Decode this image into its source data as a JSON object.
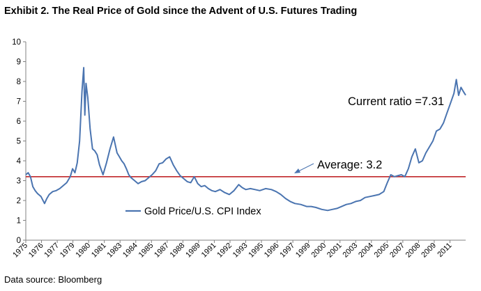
{
  "title": "Exhibit 2. The Real Price of Gold since the Advent of U.S. Futures Trading",
  "source": "Data source: Bloomberg",
  "chart_data": {
    "type": "line",
    "title": "Exhibit 2. The Real Price of Gold since the Advent of U.S. Futures Trading",
    "xlabel": "",
    "ylabel": "",
    "ylim": [
      0,
      10
    ],
    "yticks": [
      0,
      1,
      2,
      3,
      4,
      5,
      6,
      7,
      8,
      9,
      10
    ],
    "xticks": [
      "1975",
      "1976",
      "1977",
      "1979",
      "1980",
      "1981",
      "1983",
      "1984",
      "1985",
      "1987",
      "1988",
      "1989",
      "1991",
      "1992",
      "1993",
      "1995",
      "1996",
      "1997",
      "1999",
      "2000",
      "2001",
      "2003",
      "2004",
      "2005",
      "2007",
      "2008",
      "2009",
      "2011"
    ],
    "grid": false,
    "legend": {
      "position": "lower-left",
      "entries": [
        "Gold Price/U.S. CPI Index"
      ]
    },
    "colors": {
      "series": "#4a74b0",
      "average": "#c0282a"
    },
    "series": [
      {
        "name": "Gold Price/U.S. CPI Index",
        "x": [
          1975.0,
          1975.2,
          1975.4,
          1975.6,
          1975.8,
          1976.0,
          1976.3,
          1976.6,
          1976.8,
          1977.0,
          1977.3,
          1977.6,
          1977.9,
          1978.2,
          1978.5,
          1978.8,
          1979.0,
          1979.2,
          1979.4,
          1979.6,
          1979.8,
          1979.95,
          1980.05,
          1980.15,
          1980.3,
          1980.5,
          1980.7,
          1980.9,
          1981.1,
          1981.3,
          1981.6,
          1981.9,
          1982.2,
          1982.5,
          1982.8,
          1983.0,
          1983.2,
          1983.4,
          1983.6,
          1983.8,
          1984.0,
          1984.3,
          1984.6,
          1984.9,
          1985.2,
          1985.5,
          1985.8,
          1986.1,
          1986.4,
          1986.7,
          1987.0,
          1987.3,
          1987.6,
          1987.9,
          1988.2,
          1988.5,
          1988.8,
          1989.1,
          1989.4,
          1989.7,
          1990.0,
          1990.3,
          1990.6,
          1990.9,
          1991.2,
          1991.6,
          1992.0,
          1992.4,
          1992.8,
          1993.2,
          1993.5,
          1993.8,
          1994.2,
          1994.6,
          1995.0,
          1995.5,
          1996.0,
          1996.4,
          1996.8,
          1997.2,
          1997.6,
          1998.0,
          1998.5,
          1999.0,
          1999.4,
          1999.8,
          2000.3,
          2000.8,
          2001.2,
          2001.6,
          2002.0,
          2002.4,
          2002.8,
          2003.2,
          2003.6,
          2004.0,
          2004.4,
          2004.8,
          2005.2,
          2005.6,
          2005.9,
          2006.2,
          2006.5,
          2006.8,
          2007.1,
          2007.4,
          2007.7,
          2008.0,
          2008.3,
          2008.6,
          2008.9,
          2009.2,
          2009.5,
          2009.8,
          2010.1,
          2010.4,
          2010.7,
          2011.0,
          2011.3,
          2011.6,
          2011.8,
          2012.0,
          2012.2,
          2012.4,
          2012.6
        ],
        "y": [
          3.3,
          3.4,
          3.2,
          2.7,
          2.5,
          2.35,
          2.2,
          1.85,
          2.1,
          2.3,
          2.45,
          2.5,
          2.6,
          2.75,
          2.9,
          3.2,
          3.6,
          3.4,
          3.9,
          5.0,
          7.5,
          8.7,
          6.3,
          7.9,
          7.2,
          5.6,
          4.6,
          4.5,
          4.3,
          3.8,
          3.3,
          3.9,
          4.6,
          5.2,
          4.4,
          4.2,
          4.0,
          3.85,
          3.6,
          3.3,
          3.15,
          3.0,
          2.85,
          2.95,
          3.0,
          3.15,
          3.3,
          3.5,
          3.85,
          3.9,
          4.1,
          4.2,
          3.8,
          3.5,
          3.25,
          3.1,
          2.95,
          2.9,
          3.2,
          2.85,
          2.7,
          2.75,
          2.6,
          2.5,
          2.45,
          2.55,
          2.4,
          2.3,
          2.5,
          2.8,
          2.65,
          2.55,
          2.6,
          2.55,
          2.5,
          2.6,
          2.55,
          2.45,
          2.3,
          2.1,
          1.95,
          1.85,
          1.8,
          1.7,
          1.7,
          1.65,
          1.55,
          1.5,
          1.55,
          1.6,
          1.7,
          1.8,
          1.85,
          1.95,
          2.0,
          2.15,
          2.2,
          2.25,
          2.3,
          2.45,
          2.9,
          3.3,
          3.2,
          3.25,
          3.3,
          3.2,
          3.6,
          4.2,
          4.6,
          3.9,
          4.0,
          4.4,
          4.7,
          5.0,
          5.5,
          5.6,
          5.9,
          6.4,
          6.9,
          7.4,
          8.1,
          7.3,
          7.7,
          7.5,
          7.31
        ]
      }
    ],
    "average": {
      "label": "Average: 3.2",
      "value": 3.2
    },
    "annotations": [
      {
        "text": "Current ratio =7.31"
      },
      {
        "text": "Average: 3.2"
      }
    ]
  }
}
